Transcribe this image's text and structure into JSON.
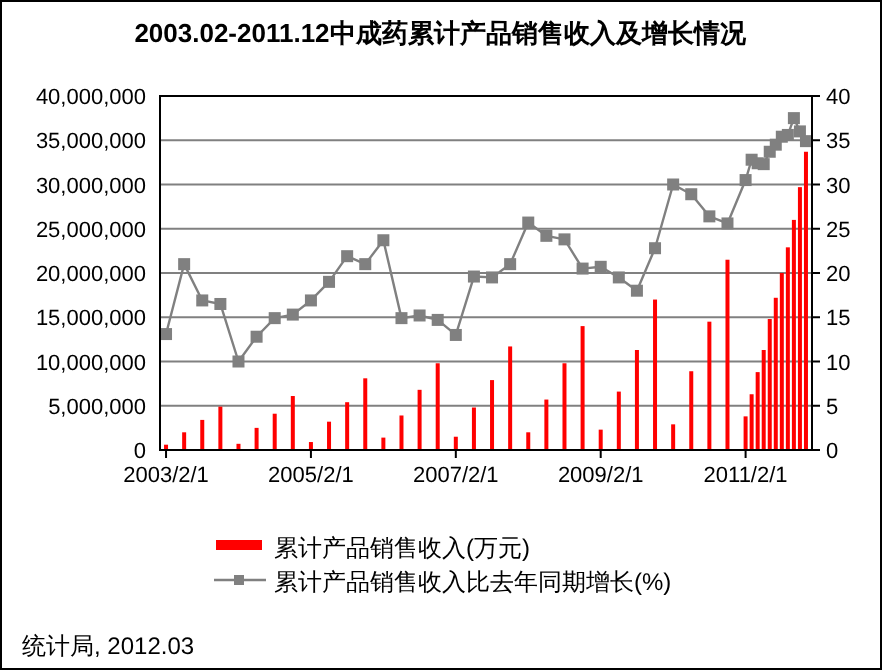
{
  "chart_data": {
    "type": "bar",
    "title": "2003.02-2011.12中成药累计产品销售收入及增长情况",
    "x": [
      "2003-02",
      "2003-05",
      "2003-08",
      "2003-11",
      "2004-02",
      "2004-05",
      "2004-08",
      "2004-11",
      "2005-02",
      "2005-05",
      "2005-08",
      "2005-11",
      "2006-02",
      "2006-05",
      "2006-08",
      "2006-11",
      "2007-02",
      "2007-05",
      "2007-08",
      "2007-11",
      "2008-02",
      "2008-05",
      "2008-08",
      "2008-11",
      "2009-02",
      "2009-05",
      "2009-08",
      "2009-11",
      "2010-02",
      "2010-05",
      "2010-08",
      "2010-11",
      "2011-02",
      "2011-03",
      "2011-04",
      "2011-05",
      "2011-06",
      "2011-07",
      "2011-08",
      "2011-09",
      "2011-10",
      "2011-11",
      "2011-12"
    ],
    "series": [
      {
        "name": "累计产品销售收入(万元)",
        "color": "#ff0000",
        "values": [
          600000,
          2000000,
          3400000,
          4900000,
          700000,
          2500000,
          4100000,
          6100000,
          900000,
          3200000,
          5400000,
          8100000,
          1400000,
          3900000,
          6800000,
          9800000,
          1500000,
          4800000,
          7900000,
          11700000,
          2000000,
          5700000,
          9800000,
          14000000,
          2300000,
          6600000,
          11300000,
          17000000,
          2900000,
          8900000,
          14500000,
          21500000,
          3800000,
          6300000,
          8800000,
          11300000,
          14800000,
          17200000,
          20000000,
          22900000,
          26000000,
          29700000,
          33700000
        ]
      },
      {
        "name": "累计产品销售收入比去年同期增长(%)",
        "type": "line",
        "axis": "y2",
        "color": "#808080",
        "marker": "square",
        "values": [
          13.1,
          21.0,
          16.9,
          16.5,
          10.0,
          12.8,
          14.9,
          15.3,
          16.9,
          19.0,
          21.9,
          21.0,
          23.7,
          14.9,
          15.2,
          14.7,
          13.0,
          19.6,
          19.5,
          21.0,
          25.7,
          24.2,
          23.8,
          20.5,
          20.7,
          19.5,
          18.0,
          22.8,
          30.0,
          28.9,
          26.4,
          25.6,
          30.5,
          32.8,
          32.4,
          32.3,
          33.7,
          34.5,
          35.4,
          35.6,
          37.5,
          36.0,
          34.9
        ]
      }
    ],
    "xlim": [
      "2003-01",
      "2012-01"
    ],
    "xticks": [
      {
        "value": "2003-02",
        "label": "2003/2/1"
      },
      {
        "value": "2005-02",
        "label": "2005/2/1"
      },
      {
        "value": "2007-02",
        "label": "2007/2/1"
      },
      {
        "value": "2009-02",
        "label": "2009/2/1"
      },
      {
        "value": "2011-02",
        "label": "2011/2/1"
      }
    ],
    "ylim": [
      0,
      40000000
    ],
    "yticks": [
      0,
      {
        "value": 5000000,
        "label": "5,000,000"
      },
      {
        "value": 10000000,
        "label": "10,000,000"
      },
      {
        "value": 15000000,
        "label": "15,000,000"
      },
      {
        "value": 20000000,
        "label": "20,000,000"
      },
      {
        "value": 25000000,
        "label": "25,000,000"
      },
      {
        "value": 30000000,
        "label": "30,000,000"
      },
      {
        "value": 35000000,
        "label": "35,000,000"
      },
      {
        "value": 40000000,
        "label": "40,000,000"
      }
    ],
    "y2lim": [
      0,
      40
    ],
    "y2ticks": [
      0,
      5,
      10,
      15,
      20,
      25,
      30,
      35,
      40
    ],
    "grid": "y",
    "legend": "bottom",
    "annotations": [
      "统计局, 2012.03"
    ]
  }
}
